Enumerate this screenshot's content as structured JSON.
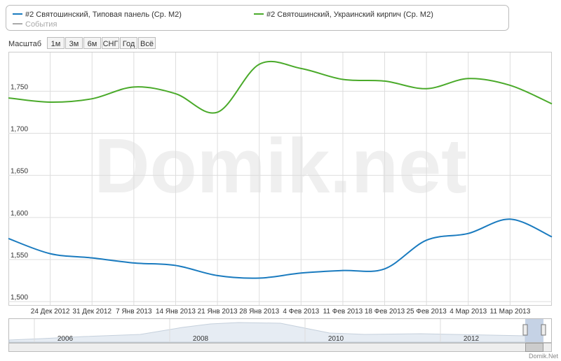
{
  "chart_data": {
    "type": "line",
    "watermark": "Domik.net",
    "credit": "Domik.Net",
    "events_label": "События",
    "events_color": "#aaaaaa",
    "range_selector": {
      "label": "Масштаб",
      "buttons": [
        "1м",
        "3м",
        "6м",
        "СНГ",
        "Год",
        "Всё"
      ]
    },
    "navigator_labels": [
      "2006",
      "2008",
      "2010",
      "2012"
    ],
    "categories": [
      null,
      "24 Дек 2012",
      "31 Дек 2012",
      "7 Янв 2013",
      "14 Янв 2013",
      "21 Янв 2013",
      "28 Янв 2013",
      "4 Фев 2013",
      "11 Фев 2013",
      "18 Фев 2013",
      "25 Фев 2013",
      "4 Мар 2013",
      "11 Мар 2013",
      null
    ],
    "series": [
      {
        "name": "#2 Святошинский, Типовая панель (Ср. М2)",
        "color": "#1a7bbf",
        "values": [
          1575,
          1557,
          1552,
          1546,
          1543,
          1531,
          1528,
          1534,
          1537,
          1539,
          1573,
          1581,
          1598,
          1577
        ]
      },
      {
        "name": "#2 Святошинский, Украинский кирпич (Ср. М2)",
        "color": "#4aaa2a",
        "values": [
          1742,
          1737,
          1741,
          1755,
          1747,
          1725,
          1782,
          1777,
          1764,
          1762,
          1753,
          1765,
          1757,
          1735
        ]
      }
    ],
    "ylim": [
      1496,
      1796
    ],
    "yticks": [
      {
        "value": 1500,
        "label": "1,500"
      },
      {
        "value": 1550,
        "label": "1,550"
      },
      {
        "value": 1600,
        "label": "1,600"
      },
      {
        "value": 1650,
        "label": "1,650"
      },
      {
        "value": 1700,
        "label": "1,700"
      },
      {
        "value": 1750,
        "label": "1,750"
      }
    ],
    "grid": true
  }
}
